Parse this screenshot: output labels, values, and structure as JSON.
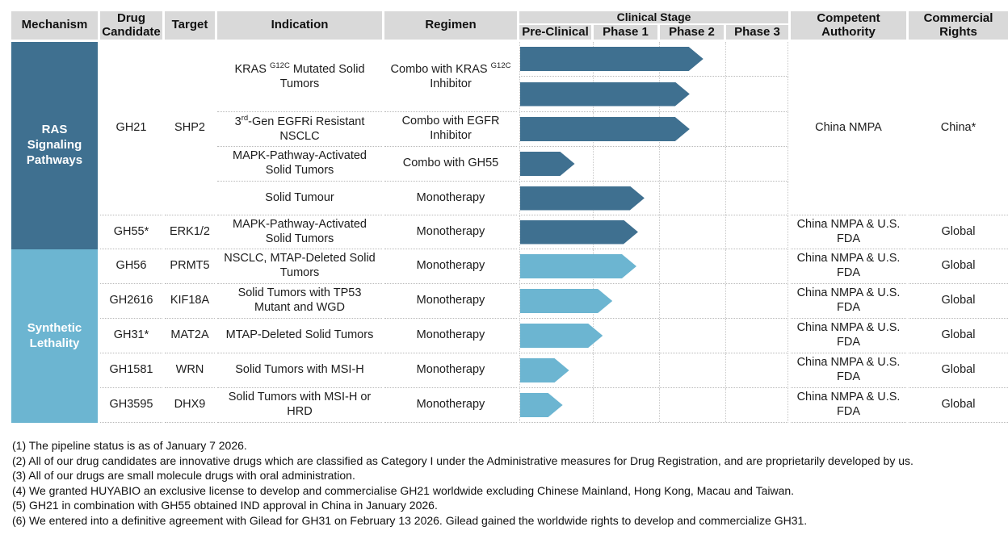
{
  "header": {
    "mechanism": "Mechanism",
    "drug_candidate": "Drug Candidate",
    "target": "Target",
    "indication": "Indication",
    "regimen": "Regimen",
    "clinical_stage": "Clinical Stage",
    "stages": [
      "Pre-Clinical",
      "Phase 1",
      "Phase 2",
      "Phase 3"
    ],
    "competent_authority": "Competent Authority",
    "commercial_rights": "Commercial Rights"
  },
  "colors": {
    "ras_blue": "#3F7090",
    "synthetic_blue": "#6CB5D1",
    "header_gray": "#D9D9D9"
  },
  "groups": [
    {
      "name": "RAS Signaling Pathways",
      "entries": [
        {
          "drug": "GH21",
          "target": "SHP2",
          "authority": "China NMPA",
          "rights": "China*",
          "programs": [
            {
              "indication": {
                "pre": "KRAS ",
                "sup": "G12C",
                "post": " Mutated Solid Tumors"
              },
              "regimen": {
                "pre": "Combo with KRAS ",
                "sup": "G12C",
                "post": " Inhibitor"
              },
              "arrows": [
                {
                  "stage": "Phase 2",
                  "progress": 0.685
                },
                {
                  "stage": "Phase 2",
                  "progress": 0.634
                }
              ]
            },
            {
              "indication": {
                "pre": "3",
                "sup": "rd",
                "post": "-Gen EGFRi Resistant NSCLC"
              },
              "regimen": {
                "text": "Combo with EGFR Inhibitor"
              },
              "arrows": [
                {
                  "stage": "Phase 2",
                  "progress": 0.634
                }
              ]
            },
            {
              "indication": {
                "text": "MAPK-Pathway-Activated Solid Tumors"
              },
              "regimen": {
                "text": "Combo with GH55"
              },
              "arrows": [
                {
                  "stage": "Pre-Clinical",
                  "progress": 0.204
                }
              ]
            },
            {
              "indication": {
                "text": "Solid Tumour"
              },
              "regimen": {
                "text": "Monotherapy"
              },
              "arrows": [
                {
                  "stage": "Phase 1",
                  "progress": 0.465
                }
              ]
            }
          ]
        },
        {
          "drug": "GH55*",
          "target": "ERK1/2",
          "authority": "China NMPA & U.S. FDA",
          "rights": "Global",
          "programs": [
            {
              "indication": {
                "text": "MAPK-Pathway-Activated Solid Tumors"
              },
              "regimen": {
                "text": "Monotherapy"
              },
              "arrows": [
                {
                  "stage": "Phase 1",
                  "progress": 0.441
                }
              ]
            }
          ]
        }
      ]
    },
    {
      "name": "Synthetic Lethality",
      "entries": [
        {
          "drug": "GH56",
          "target": "PRMT5",
          "authority": "China NMPA & U.S. FDA",
          "rights": "Global",
          "programs": [
            {
              "indication": {
                "text": "NSCLC, MTAP-Deleted Solid Tumors"
              },
              "regimen": {
                "text": "Monotherapy"
              },
              "arrows": [
                {
                  "stage": "Phase 1",
                  "progress": 0.435
                }
              ]
            }
          ]
        },
        {
          "drug": "GH2616",
          "target": "KIF18A",
          "authority": "China NMPA & U.S. FDA",
          "rights": "Global",
          "programs": [
            {
              "indication": {
                "text": "Solid Tumors with TP53 Mutant and WGD"
              },
              "regimen": {
                "text": "Monotherapy"
              },
              "arrows": [
                {
                  "stage": "Phase 1",
                  "progress": 0.345
                }
              ]
            }
          ]
        },
        {
          "drug": "GH31*",
          "target": "MAT2A",
          "authority": "China NMPA & U.S. FDA",
          "rights": "Global",
          "programs": [
            {
              "indication": {
                "text": "MTAP-Deleted Solid Tumors"
              },
              "regimen": {
                "text": "Monotherapy"
              },
              "arrows": [
                {
                  "stage": "Phase 1",
                  "progress": 0.309
                }
              ]
            }
          ]
        },
        {
          "drug": "GH1581",
          "target": "WRN",
          "authority": "China NMPA & U.S. FDA",
          "rights": "Global",
          "programs": [
            {
              "indication": {
                "text": "Solid Tumors with MSI-H"
              },
              "regimen": {
                "text": "Monotherapy"
              },
              "arrows": [
                {
                  "stage": "Pre-Clinical",
                  "progress": 0.183
                }
              ]
            }
          ]
        },
        {
          "drug": "GH3595",
          "target": "DHX9",
          "authority": "China NMPA & U.S. FDA",
          "rights": "Global",
          "programs": [
            {
              "indication": {
                "text": "Solid Tumors with MSI-H or HRD"
              },
              "regimen": {
                "text": "Monotherapy"
              },
              "arrows": [
                {
                  "stage": "Pre-Clinical",
                  "progress": 0.159
                }
              ]
            }
          ]
        }
      ]
    }
  ],
  "footnotes": [
    "(1) The pipeline status is as of January 7 2026.",
    "(2) All of our drug candidates are innovative drugs which are classified as Category I under the Administrative measures for Drug Registration, and are proprietarily developed by us.",
    "(3) All of our drugs are small molecule drugs with oral administration.",
    "(4) We granted HUYABIO an exclusive license to develop and commercialise GH21 worldwide excluding Chinese Mainland, Hong Kong, Macau and Taiwan.",
    "(5) GH21 in combination with GH55 obtained IND approval in China in January 2026.",
    "(6) We entered into a definitive agreement with Gilead for GH31 on February 13 2026. Gilead gained the worldwide rights to develop and commercialize GH31."
  ]
}
